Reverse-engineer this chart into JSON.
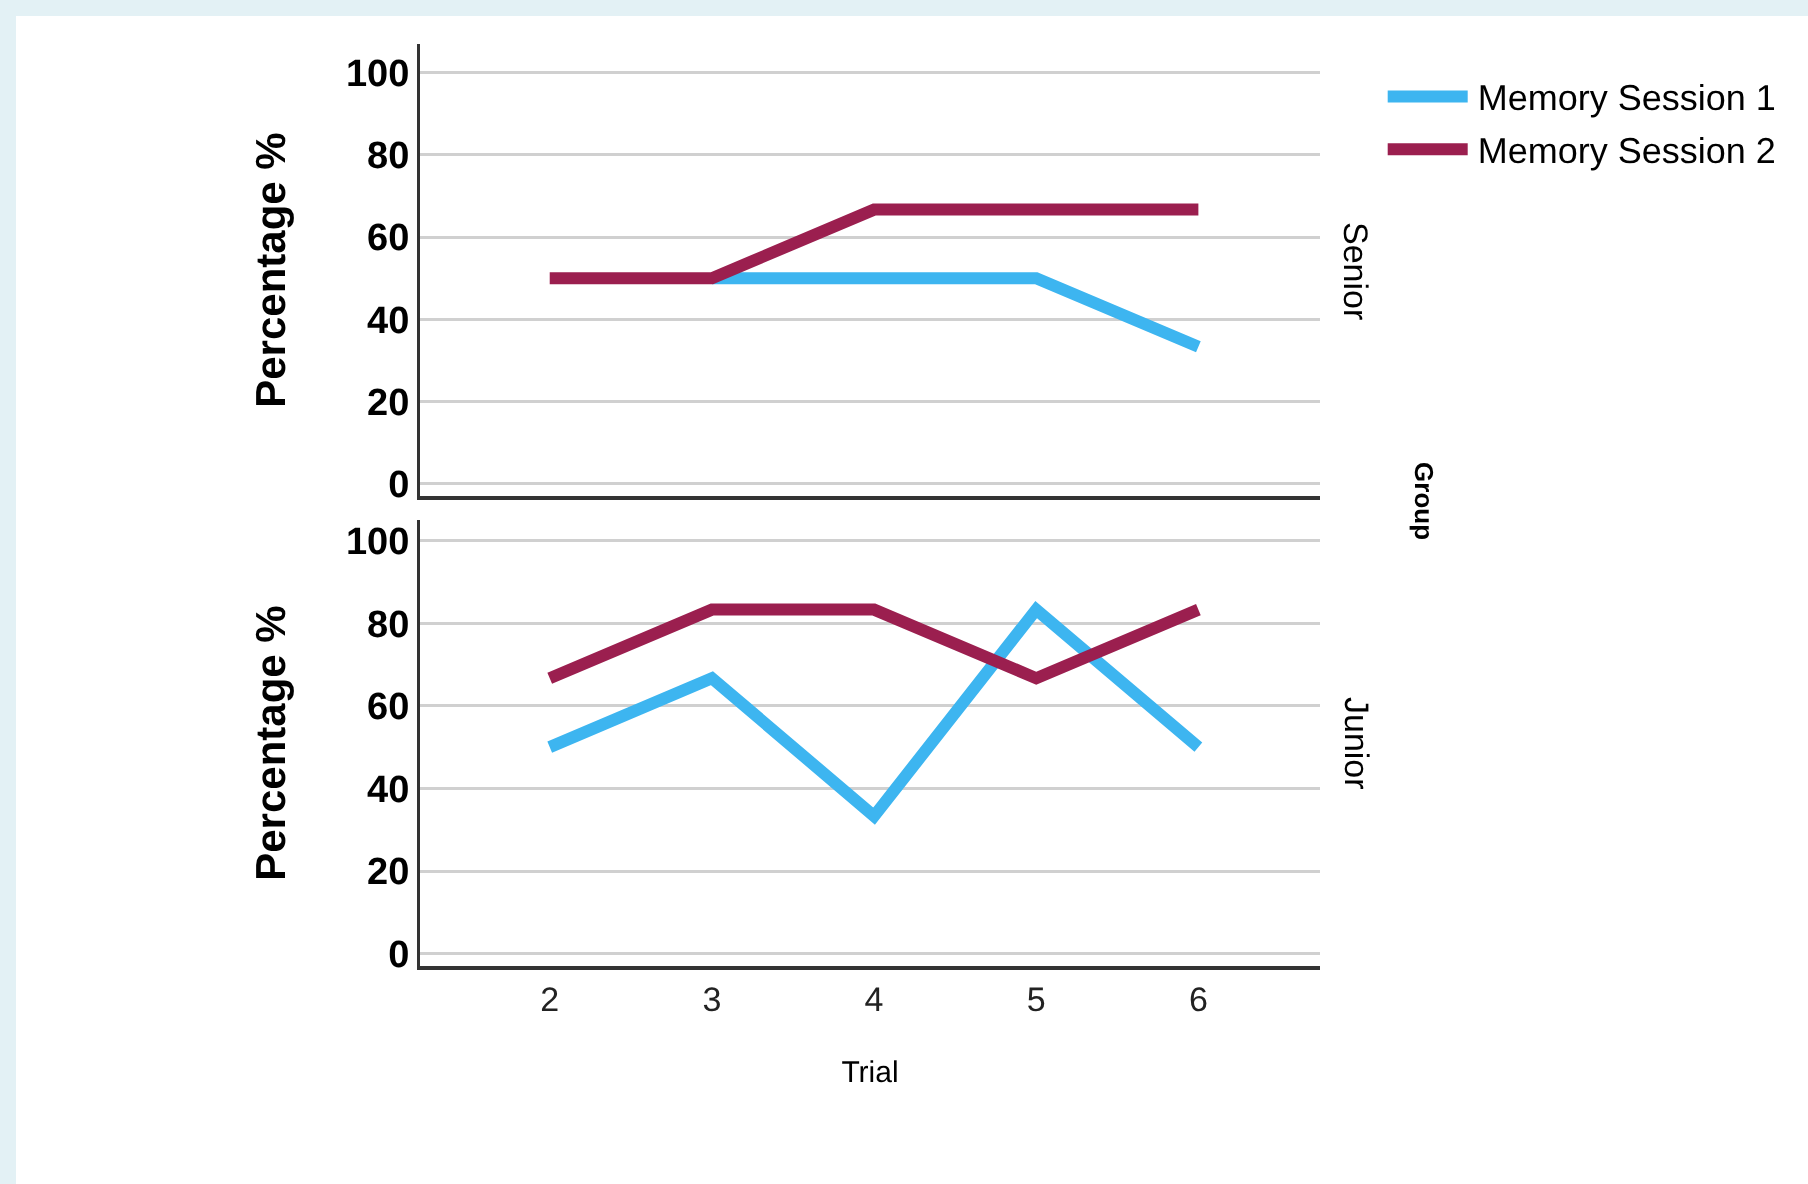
{
  "chart_data": [
    {
      "type": "line",
      "ylabel": "Percentage %",
      "x": [
        2,
        3,
        4,
        5,
        6
      ],
      "xlim": [
        1.2,
        6.75
      ],
      "xticks": [
        2,
        3,
        4,
        5,
        6
      ],
      "ylim": [
        -3,
        107
      ],
      "yticks": [
        0,
        20,
        40,
        60,
        80,
        100
      ],
      "grid": "y",
      "legend": "top right",
      "tick_labels": "y",
      "annotations": [
        "Senior",
        "Group"
      ],
      "series": [
        {
          "name": "Memory Session 1",
          "color": "#3db5f0",
          "values": [
            null,
            50,
            50,
            50,
            33.3
          ]
        },
        {
          "name": "Memory Session 2",
          "color": "#9b1f4f",
          "values": [
            50,
            50,
            66.7,
            66.7,
            66.7
          ]
        }
      ]
    },
    {
      "type": "line",
      "xlabel": "Trial",
      "ylabel": "Percentage %",
      "x": [
        2,
        3,
        4,
        5,
        6
      ],
      "xlim": [
        1.2,
        6.75
      ],
      "xticks": [
        2,
        3,
        4,
        5,
        6
      ],
      "ylim": [
        -3,
        105
      ],
      "yticks": [
        0,
        20,
        40,
        60,
        80,
        100
      ],
      "grid": "y",
      "annotations": [
        "Junior"
      ],
      "series": [
        {
          "color": "#3db5f0",
          "values": [
            50,
            66.7,
            33.3,
            83.3,
            50
          ]
        },
        {
          "color": "#9b1f4f",
          "values": [
            66.7,
            83.3,
            83.3,
            66.7,
            83.3
          ]
        }
      ]
    }
  ]
}
